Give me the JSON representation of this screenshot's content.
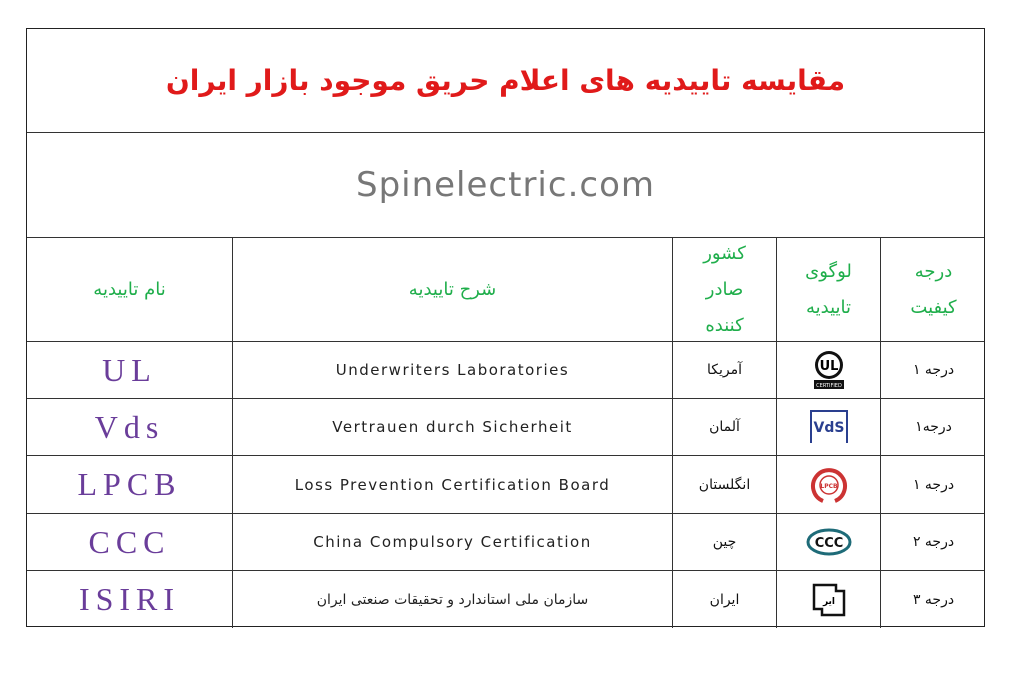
{
  "title": "مقایسه تاییدیه های اعلام حریق موجود بازار ایران",
  "website": "Spinelectric.com",
  "headers": {
    "name": "نام تاییدیه",
    "description": "شرح تاییدیه",
    "country": "کشور صادر کننده",
    "logo": "لوگوی تاییدیه",
    "grade": "درجه کیفیت"
  },
  "rows": [
    {
      "name": "UL",
      "description": "Underwriters Laboratories",
      "country": "آمریکا",
      "logo": "ul-certified-logo",
      "grade": "درجه ۱"
    },
    {
      "name": "Vds",
      "description": "Vertrauen durch Sicherheit",
      "country": "آلمان",
      "logo": "vds-logo",
      "grade": "درجه۱"
    },
    {
      "name": "LPCB",
      "description": "Loss Prevention Certification Board",
      "country": "انگلستان",
      "logo": "lpcb-logo",
      "grade": "درجه ۱"
    },
    {
      "name": "CCC",
      "description": "China Compulsory Certification",
      "country": "چین",
      "logo": "ccc-logo",
      "grade": "درجه ۲"
    },
    {
      "name": "ISIRI",
      "description": "سازمان ملی استاندارد و تحقیقات صنعتی ایران",
      "country": "ایران",
      "logo": "isiri-logo",
      "grade": "درجه ۳"
    }
  ],
  "logo_text": {
    "ul": "UL",
    "ul_sub": "CERTIFIED",
    "vds": "VdS",
    "lpcb": "LPCB",
    "ccc": "CCC",
    "isiri": "ISIRI"
  },
  "colors": {
    "title": "#e01a1a",
    "header": "#1fae4b",
    "name": "#6a3d9a",
    "site": "#777777"
  }
}
